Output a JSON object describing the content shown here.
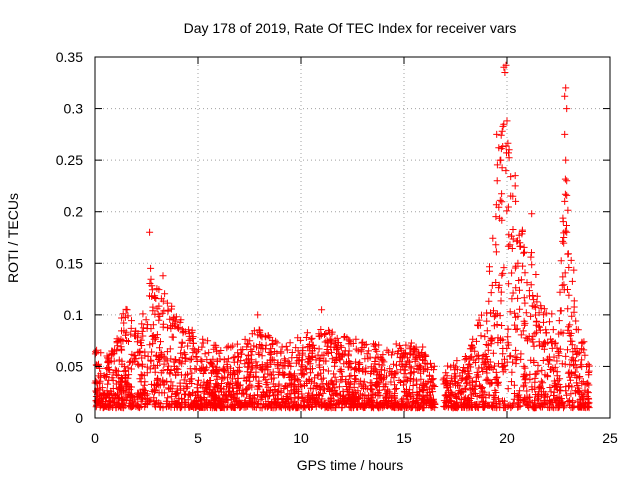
{
  "chart_data": {
    "type": "scatter",
    "title": "Day 178 of 2019, Rate Of TEC Index for receiver vars",
    "xlabel": "GPS time / hours",
    "ylabel": "ROTI / TECUs",
    "xlim": [
      0,
      25
    ],
    "ylim": [
      0,
      0.35
    ],
    "x_ticks": [
      0,
      5,
      10,
      15,
      20,
      25
    ],
    "y_ticks": [
      0,
      0.05,
      0.1,
      0.15,
      0.2,
      0.25,
      0.3,
      0.35
    ],
    "x_tick_labels": [
      "0",
      "5",
      "10",
      "15",
      "20",
      "25"
    ],
    "y_tick_labels": [
      "0",
      "0.05",
      "0.1",
      "0.15",
      "0.2",
      "0.25",
      "0.3",
      "0.35"
    ],
    "grid": true,
    "marker": "+",
    "color": "#ff0000",
    "envelope": {
      "x": [
        0.0,
        0.5,
        1.0,
        1.3,
        1.5,
        2.0,
        2.5,
        2.7,
        3.0,
        3.5,
        4.0,
        4.5,
        5.0,
        6.0,
        7.0,
        8.0,
        9.0,
        10.0,
        11.0,
        12.0,
        13.0,
        14.0,
        15.0,
        16.0,
        16.5,
        17.0,
        18.0,
        19.0,
        19.3,
        19.6,
        19.9,
        20.3,
        20.8,
        21.2,
        21.6,
        22.0,
        22.5,
        22.8,
        23.0,
        23.5,
        24.0
      ],
      "upper": [
        0.07,
        0.06,
        0.07,
        0.1,
        0.11,
        0.09,
        0.12,
        0.14,
        0.13,
        0.12,
        0.1,
        0.09,
        0.08,
        0.07,
        0.075,
        0.09,
        0.07,
        0.08,
        0.09,
        0.08,
        0.075,
        0.07,
        0.075,
        0.07,
        0.05,
        0.05,
        0.06,
        0.12,
        0.2,
        0.26,
        0.3,
        0.22,
        0.18,
        0.16,
        0.12,
        0.11,
        0.09,
        0.26,
        0.2,
        0.09,
        0.06
      ],
      "lower": [
        0.01,
        0.01,
        0.01,
        0.01,
        0.01,
        0.01,
        0.01,
        0.01,
        0.01,
        0.01,
        0.01,
        0.01,
        0.01,
        0.01,
        0.01,
        0.01,
        0.01,
        0.01,
        0.01,
        0.01,
        0.01,
        0.01,
        0.01,
        0.01,
        0.01,
        0.01,
        0.01,
        0.01,
        0.01,
        0.01,
        0.01,
        0.01,
        0.01,
        0.01,
        0.01,
        0.01,
        0.01,
        0.01,
        0.01,
        0.01,
        0.01
      ]
    },
    "outliers": [
      {
        "x": 2.65,
        "y": 0.18
      },
      {
        "x": 2.7,
        "y": 0.145
      },
      {
        "x": 3.3,
        "y": 0.138
      },
      {
        "x": 7.9,
        "y": 0.1
      },
      {
        "x": 11.0,
        "y": 0.105
      },
      {
        "x": 19.5,
        "y": 0.275
      },
      {
        "x": 19.6,
        "y": 0.262
      },
      {
        "x": 19.7,
        "y": 0.25
      },
      {
        "x": 19.85,
        "y": 0.34
      },
      {
        "x": 19.9,
        "y": 0.335
      },
      {
        "x": 19.95,
        "y": 0.342
      },
      {
        "x": 20.0,
        "y": 0.288
      },
      {
        "x": 20.1,
        "y": 0.26
      },
      {
        "x": 20.4,
        "y": 0.235
      },
      {
        "x": 20.4,
        "y": 0.225
      },
      {
        "x": 21.2,
        "y": 0.198
      },
      {
        "x": 22.85,
        "y": 0.32
      },
      {
        "x": 22.8,
        "y": 0.312
      },
      {
        "x": 22.9,
        "y": 0.3
      },
      {
        "x": 22.8,
        "y": 0.275
      },
      {
        "x": 22.85,
        "y": 0.25
      },
      {
        "x": 22.9,
        "y": 0.23
      },
      {
        "x": 22.8,
        "y": 0.21
      },
      {
        "x": 22.9,
        "y": 0.18
      },
      {
        "x": 22.75,
        "y": 0.175
      }
    ]
  }
}
